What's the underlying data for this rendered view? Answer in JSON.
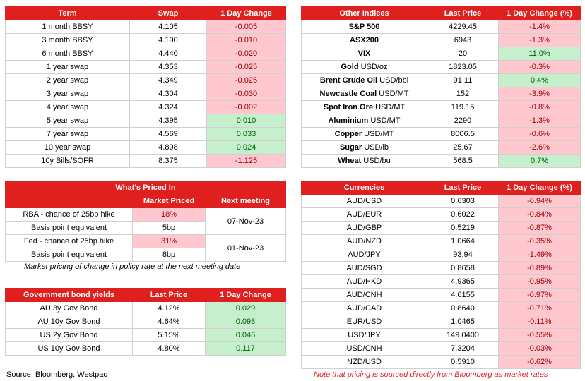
{
  "swaps": {
    "headers": [
      "Term",
      "Swap",
      "1 Day Change"
    ],
    "rows": [
      {
        "term": "1 month BBSY",
        "swap": "4.105",
        "change": "-0.005",
        "dir": "neg"
      },
      {
        "term": "3 month BBSY",
        "swap": "4.190",
        "change": "-0.010",
        "dir": "neg"
      },
      {
        "term": "6 month BBSY",
        "swap": "4.440",
        "change": "-0.020",
        "dir": "neg"
      },
      {
        "term": "1 year swap",
        "swap": "4.353",
        "change": "-0.025",
        "dir": "neg"
      },
      {
        "term": "2 year swap",
        "swap": "4.349",
        "change": "-0.025",
        "dir": "neg"
      },
      {
        "term": "3 year swap",
        "swap": "4.304",
        "change": "-0.030",
        "dir": "neg"
      },
      {
        "term": "4 year swap",
        "swap": "4.324",
        "change": "-0.002",
        "dir": "neg"
      },
      {
        "term": "5 year swap",
        "swap": "4.395",
        "change": "0.010",
        "dir": "pos"
      },
      {
        "term": "7 year swap",
        "swap": "4.569",
        "change": "0.033",
        "dir": "pos"
      },
      {
        "term": "10 year swap",
        "swap": "4.898",
        "change": "0.024",
        "dir": "pos"
      },
      {
        "term": "10y Bills/SOFR",
        "swap": "8.375",
        "change": "-1.125",
        "dir": "neg"
      }
    ]
  },
  "indices": {
    "headers": [
      "Other Indices",
      "Last Price",
      "1 Day Change (%)"
    ],
    "rows": [
      {
        "name": "S&P 500",
        "unit": "",
        "price": "4229.45",
        "change": "-1.4%",
        "dir": "neg"
      },
      {
        "name": "ASX200",
        "unit": "",
        "price": "6943",
        "change": "-1.3%",
        "dir": "neg"
      },
      {
        "name": "VIX",
        "unit": "",
        "price": "20",
        "change": "11.0%",
        "dir": "pos"
      },
      {
        "name": "Gold",
        "unit": " USD/oz",
        "price": "1823.05",
        "change": "-0.3%",
        "dir": "neg"
      },
      {
        "name": "Brent Crude Oil",
        "unit": " USD/bbl",
        "price": "91.11",
        "change": "0.4%",
        "dir": "pos"
      },
      {
        "name": "Newcastle Coal",
        "unit": " USD/MT",
        "price": "152",
        "change": "-3.9%",
        "dir": "neg"
      },
      {
        "name": "Spot Iron Ore",
        "unit": " USD/MT",
        "price": "119.15",
        "change": "-0.8%",
        "dir": "neg"
      },
      {
        "name": "Aluminium",
        "unit": " USD/MT",
        "price": "2290",
        "change": "-1.3%",
        "dir": "neg"
      },
      {
        "name": "Copper",
        "unit": " USD/MT",
        "price": "8006.5",
        "change": "-0.6%",
        "dir": "neg"
      },
      {
        "name": "Sugar",
        "unit": " USD/lb",
        "price": "25.67",
        "change": "-2.6%",
        "dir": "neg"
      },
      {
        "name": "Wheat",
        "unit": " USD/bu",
        "price": "568.5",
        "change": "0.7%",
        "dir": "pos"
      }
    ]
  },
  "priced": {
    "title": "What's Priced In",
    "headers": [
      "",
      "Market Priced",
      "Next meeting"
    ],
    "rba_label": "RBA - chance of 25bp hike",
    "rba_value": "18%",
    "rba_bp_label": "Basis point equivalent",
    "rba_bp_value": "5bp",
    "rba_date": "07-Nov-23",
    "fed_label": "Fed - chance of 25bp hike",
    "fed_value": "31%",
    "fed_bp_label": "Basis point equivalent",
    "fed_bp_value": "8bp",
    "fed_date": "01-Nov-23",
    "note": "Market pricing of change in policy rate at the next meeting date"
  },
  "bonds": {
    "headers": [
      "Government bond yields",
      "Last Price",
      "1 Day Change"
    ],
    "rows": [
      {
        "name": "AU 3y Gov Bond",
        "price": "4.12%",
        "change": "0.029",
        "dir": "pos"
      },
      {
        "name": "AU 10y Gov Bond",
        "price": "4.64%",
        "change": "0.098",
        "dir": "pos"
      },
      {
        "name": "US 2y Gov Bond",
        "price": "5.15%",
        "change": "0.046",
        "dir": "pos"
      },
      {
        "name": "US 10y Gov Bond",
        "price": "4.80%",
        "change": "0.117",
        "dir": "pos"
      }
    ]
  },
  "currencies": {
    "headers": [
      "Currencies",
      "Last Price",
      "1 Day Change (%)"
    ],
    "rows": [
      {
        "pair": "AUD/USD",
        "price": "0.6303",
        "change": "-0.94%",
        "dir": "neg"
      },
      {
        "pair": "AUD/EUR",
        "price": "0.6022",
        "change": "-0.84%",
        "dir": "neg"
      },
      {
        "pair": "AUD/GBP",
        "price": "0.5219",
        "change": "-0.87%",
        "dir": "neg"
      },
      {
        "pair": "AUD/NZD",
        "price": "1.0664",
        "change": "-0.35%",
        "dir": "neg"
      },
      {
        "pair": "AUD/JPY",
        "price": "93.94",
        "change": "-1.49%",
        "dir": "neg"
      },
      {
        "pair": "AUD/SGD",
        "price": "0.8658",
        "change": "-0.89%",
        "dir": "neg"
      },
      {
        "pair": "AUD/HKD",
        "price": "4.9365",
        "change": "-0.95%",
        "dir": "neg"
      },
      {
        "pair": "AUD/CNH",
        "price": "4.6155",
        "change": "-0.97%",
        "dir": "neg"
      },
      {
        "pair": "AUD/CAD",
        "price": "0.8640",
        "change": "-0.71%",
        "dir": "neg"
      },
      {
        "pair": "EUR/USD",
        "price": "1.0465",
        "change": "-0.11%",
        "dir": "neg"
      },
      {
        "pair": "USD/JPY",
        "price": "149.0400",
        "change": "-0.55%",
        "dir": "neg"
      },
      {
        "pair": "USD/CNH",
        "price": "7.3204",
        "change": "-0.03%",
        "dir": "neg"
      },
      {
        "pair": "NZD/USD",
        "price": "0.5910",
        "change": "-0.62%",
        "dir": "neg"
      }
    ]
  },
  "source": "Source: Bloomberg, Westpac",
  "disclaimer": "Note that pricing is sourced directly from Bloomberg as market rates",
  "colors": {
    "header_red": "#e01f1f",
    "neg_bg": "#ffc7ce",
    "pos_bg": "#c6efce"
  }
}
